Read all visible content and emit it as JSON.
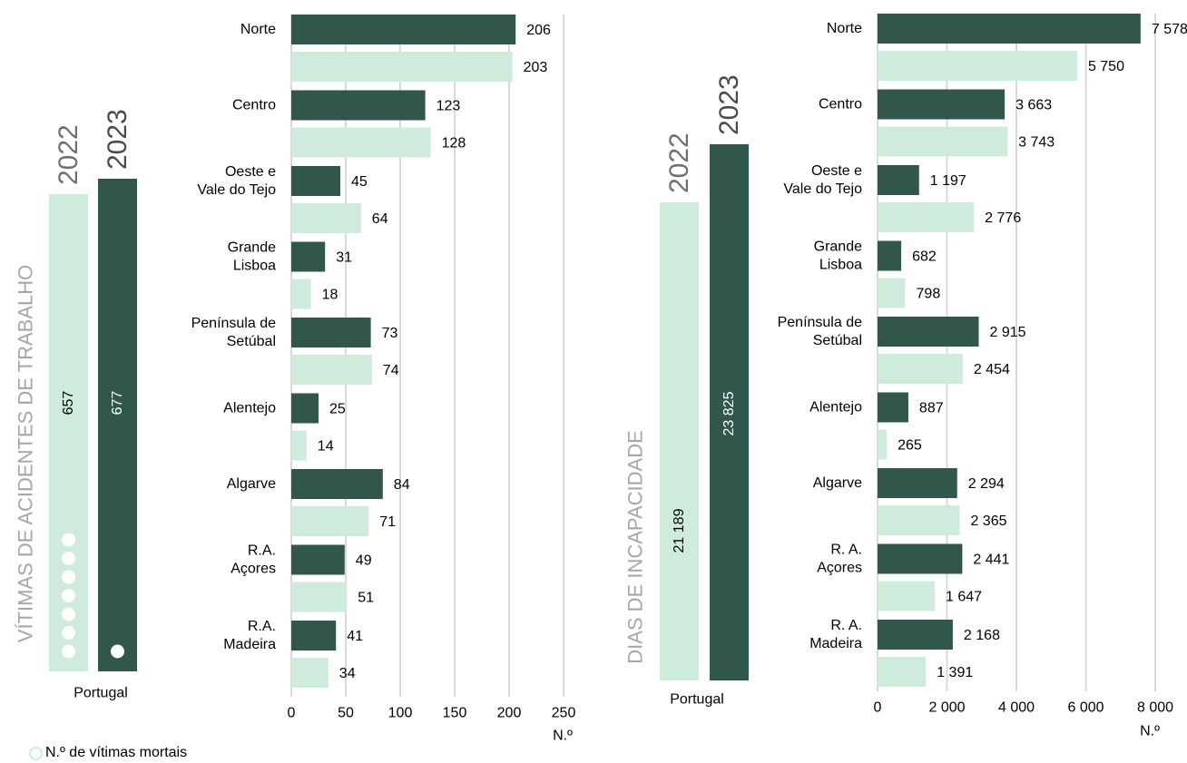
{
  "colors": {
    "dark": "#31574d",
    "light": "#cfebdc",
    "grid": "#d9d9d9",
    "title": "#a6a6a6"
  },
  "chart_data": [
    {
      "type": "bar",
      "panel": "left",
      "title": "VÍTIMAS DE ACIDENTES DE TRABALHO",
      "summary": {
        "label": "Portugal",
        "bars": [
          {
            "year": "2022",
            "value": 657,
            "value_label": "657",
            "deaths": 7
          },
          {
            "year": "2023",
            "value": 677,
            "value_label": "677",
            "deaths": 1
          }
        ]
      },
      "categories": [
        "Norte",
        "Centro",
        "Oeste e|Vale do Tejo",
        "Grande|Lisboa",
        "Península de|Setúbal",
        "Alentejo",
        "Algarve",
        "R.A.|Açores",
        "R.A.|Madeira"
      ],
      "series": [
        {
          "name": "2023",
          "values": [
            206,
            123,
            45,
            31,
            73,
            25,
            84,
            49,
            41
          ],
          "labels": [
            "206",
            "123",
            "45",
            "31",
            "73",
            "25",
            "84",
            "49",
            "41"
          ]
        },
        {
          "name": "2022",
          "values": [
            203,
            128,
            64,
            18,
            74,
            14,
            71,
            51,
            34
          ],
          "labels": [
            "203",
            "128",
            "64",
            "18",
            "74",
            "14",
            "71",
            "51",
            "34"
          ]
        }
      ],
      "xlim": [
        0,
        250
      ],
      "xticks": [
        "0",
        "50",
        "100",
        "150",
        "200",
        "250"
      ],
      "xlabel": "N.º",
      "grid": true
    },
    {
      "type": "bar",
      "panel": "right",
      "title": "DIAS DE INCAPACIDADE",
      "summary": {
        "label": "Portugal",
        "bars": [
          {
            "year": "2022",
            "value": 21189,
            "value_label": "21 189"
          },
          {
            "year": "2023",
            "value": 23825,
            "value_label": "23 825"
          }
        ]
      },
      "categories": [
        "Norte",
        "Centro",
        "Oeste e|Vale do Tejo",
        "Grande|Lisboa",
        "Península de|Setúbal",
        "Alentejo",
        "Algarve",
        "R. A.|Açores",
        "R. A.|Madeira"
      ],
      "series": [
        {
          "name": "2023",
          "values": [
            7578,
            3663,
            1197,
            682,
            2915,
            887,
            2294,
            2441,
            2168
          ],
          "labels": [
            "7 578",
            "3 663",
            "1 197",
            "682",
            "2 915",
            "887",
            "2 294",
            "2 441",
            "2 168"
          ]
        },
        {
          "name": "2022",
          "values": [
            5750,
            3743,
            2776,
            798,
            2454,
            265,
            2365,
            1647,
            1391
          ],
          "labels": [
            "5 750",
            "3 743",
            "2 776",
            "798",
            "2 454",
            "265",
            "2 365",
            "1 647",
            "1 391"
          ]
        }
      ],
      "xlim": [
        0,
        8000
      ],
      "xticks": [
        "0",
        "2 000",
        "4 000",
        "6 000",
        "8 000"
      ],
      "xlabel": "N.º",
      "grid": true
    }
  ],
  "legend": {
    "deaths_label": "N.º de vítimas mortais"
  }
}
